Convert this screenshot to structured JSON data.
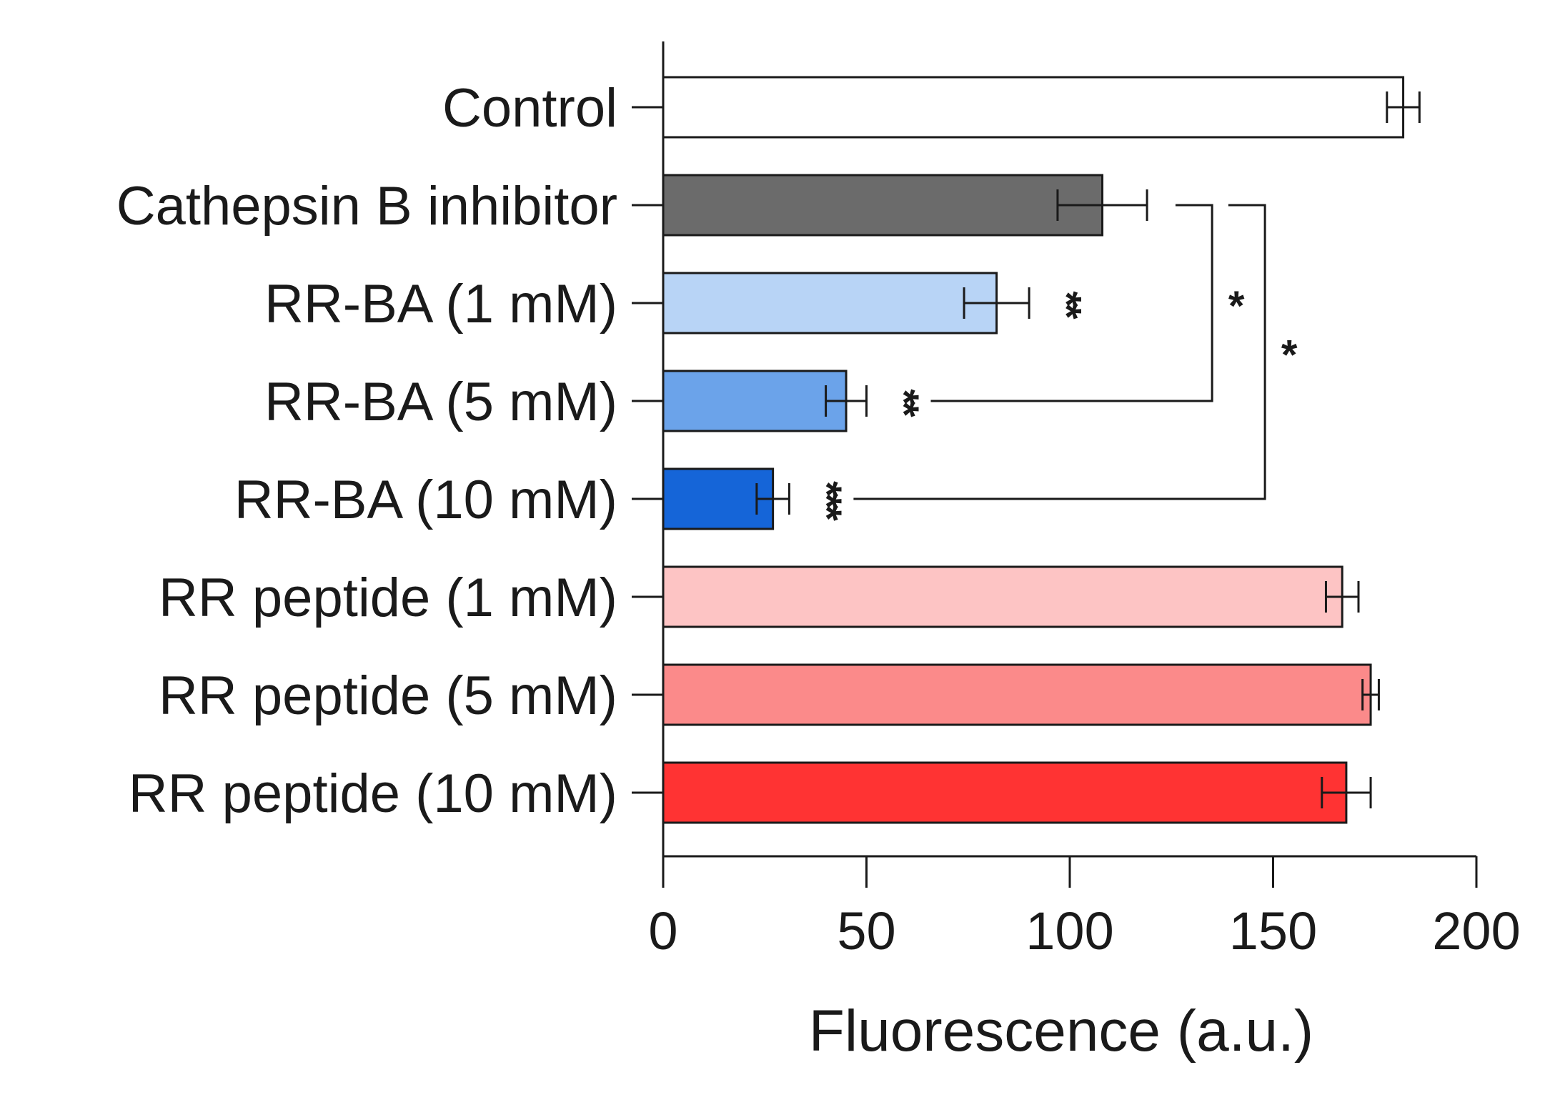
{
  "chart_data": {
    "type": "bar",
    "orientation": "horizontal",
    "title": "",
    "xlabel": "Fluorescence (a.u.)",
    "ylabel": "",
    "xlim": [
      0,
      200
    ],
    "xticks": [
      0,
      50,
      100,
      150,
      200
    ],
    "xtick_labels": [
      "0",
      "50",
      "100",
      "150",
      "200"
    ],
    "categories": [
      "Control",
      "Cathepsin B inhibitor",
      "RR-BA (1 mM)",
      "RR-BA (5 mM)",
      "RR-BA (10 mM)",
      "RR peptide (1 mM)",
      "RR peptide (5 mM)",
      "RR peptide (10 mM)"
    ],
    "values": [
      182,
      108,
      82,
      45,
      27,
      167,
      174,
      168
    ],
    "errors": [
      4,
      11,
      8,
      5,
      4,
      4,
      2,
      6
    ],
    "colors": [
      "#ffffff",
      "#6b6b6b",
      "#b8d4f6",
      "#6ba3ea",
      "#1565d8",
      "#fdc4c4",
      "#fb8a8a",
      "#ff3333"
    ],
    "significance": [
      {
        "category": "RR-BA (1 mM)",
        "label": "**"
      },
      {
        "category": "RR-BA (5 mM)",
        "label": "**"
      },
      {
        "category": "RR-BA (10 mM)",
        "label": "***"
      }
    ],
    "brackets": [
      {
        "from": "Cathepsin B inhibitor",
        "to": "RR-BA (5 mM)",
        "label": "*"
      },
      {
        "from": "Cathepsin B inhibitor",
        "to": "RR-BA (10 mM)",
        "label": "*"
      }
    ],
    "grid": false,
    "legend": "none"
  }
}
